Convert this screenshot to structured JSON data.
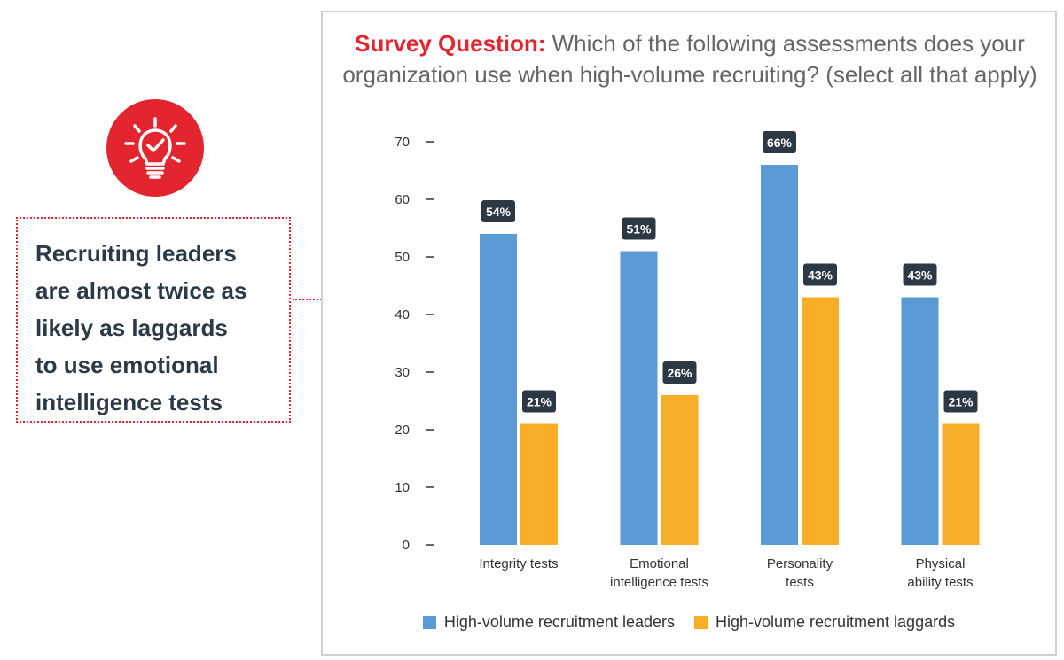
{
  "callout": {
    "lines": [
      "Recruiting leaders",
      "are almost twice as",
      "likely as laggards",
      "to use emotional",
      "intelligence tests"
    ],
    "accent_color": "#e3252f",
    "icon": "lightbulb-check-icon"
  },
  "chart_data": {
    "type": "bar",
    "title_prefix": "Survey Question:",
    "title": "Which of the following assessments does your organization use when high-volume recruiting? (select all that apply)",
    "categories": [
      [
        "Integrity tests"
      ],
      [
        "Emotional",
        "intelligence tests"
      ],
      [
        "Personality",
        "tests"
      ],
      [
        "Physical",
        "ability tests"
      ]
    ],
    "series": [
      {
        "name": "High-volume recruitment leaders",
        "color": "#5b9bd5",
        "values": [
          54,
          51,
          66,
          43
        ],
        "labels": [
          "54%",
          "51%",
          "66%",
          "43%"
        ]
      },
      {
        "name": "High-volume recruitment laggards",
        "color": "#f9ae2a",
        "values": [
          21,
          26,
          43,
          21
        ],
        "labels": [
          "21%",
          "26%",
          "43%",
          "21%"
        ]
      }
    ],
    "yticks": [
      0,
      10,
      20,
      30,
      40,
      50,
      60,
      70
    ],
    "ylim": [
      0,
      70
    ],
    "xlabel": "",
    "ylabel": "",
    "grid": false,
    "legend_position": "bottom"
  }
}
